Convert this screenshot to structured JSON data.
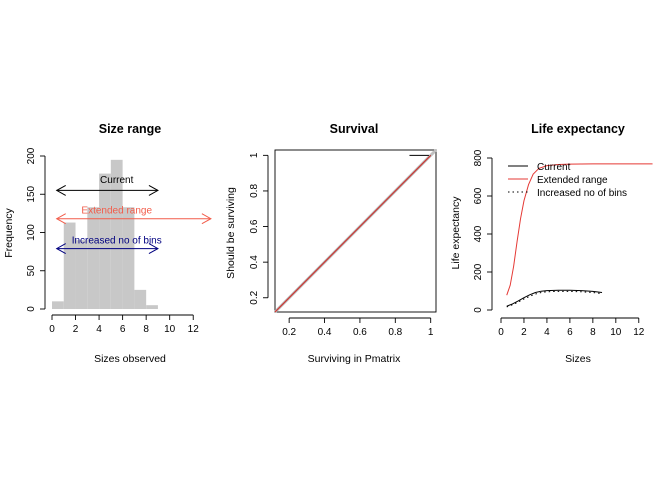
{
  "chart_data": [
    {
      "type": "bar",
      "title": "Size range",
      "xlabel": "Sizes observed",
      "ylabel": "Frequency",
      "xlim": [
        0,
        13
      ],
      "ylim": [
        0,
        200
      ],
      "xticks": [
        0,
        2,
        4,
        6,
        8,
        10,
        12
      ],
      "yticks": [
        0,
        50,
        100,
        150,
        200
      ],
      "bins": [
        {
          "x0": 0,
          "x1": 1,
          "value": 10
        },
        {
          "x0": 1,
          "x1": 2,
          "value": 113
        },
        {
          "x0": 2,
          "x1": 3,
          "value": 90
        },
        {
          "x0": 3,
          "x1": 4,
          "value": 133
        },
        {
          "x0": 4,
          "x1": 5,
          "value": 177
        },
        {
          "x0": 5,
          "x1": 6,
          "value": 195
        },
        {
          "x0": 6,
          "x1": 7,
          "value": 133
        },
        {
          "x0": 7,
          "x1": 8,
          "value": 25
        },
        {
          "x0": 8,
          "x1": 9,
          "value": 5
        }
      ],
      "bar_color": "#c8c8c8",
      "annotations": [
        {
          "label": "Current",
          "from": 0.4,
          "to": 9,
          "y": 155,
          "label_y": 170,
          "label_x": 5.5,
          "color": "#000000"
        },
        {
          "label": "Extended range",
          "from": 0.4,
          "to": 13.5,
          "y": 118,
          "label_y": 130,
          "label_x": 5.5,
          "color": "#f25c4a"
        },
        {
          "label": "Increased no of bins",
          "from": 0.4,
          "to": 9,
          "y": 79,
          "label_y": 91,
          "label_x": 5.5,
          "color": "#000080"
        }
      ]
    },
    {
      "type": "line",
      "title": "Survival",
      "xlabel": "Surviving in Pmatrix",
      "ylabel": "Should be surviving",
      "xlim": [
        0.12,
        1.03
      ],
      "ylim": [
        0.12,
        1.03
      ],
      "xticks": [
        0.2,
        0.4,
        0.6,
        0.8,
        1.0
      ],
      "yticks": [
        0.2,
        0.4,
        0.6,
        0.8,
        1.0
      ],
      "series": [
        {
          "x": [
            0.12,
            1.03
          ],
          "y": [
            0.12,
            1.03
          ],
          "color": "#c0c0c0",
          "width": 3
        },
        {
          "x": [
            0.12,
            1.0
          ],
          "y": [
            0.12,
            1.0
          ],
          "color": "#000000",
          "width": 1
        },
        {
          "x": [
            0.12,
            1.0
          ],
          "y": [
            0.12,
            1.0
          ],
          "color": "#e53935",
          "width": 1
        },
        {
          "x": [
            0.88,
            0.99
          ],
          "y": [
            1.0,
            1.0
          ],
          "color": "#000000",
          "width": 1
        }
      ]
    },
    {
      "type": "line",
      "title": "Life expectancy",
      "xlabel": "Sizes",
      "ylabel": "Life expectancy",
      "xlim": [
        0,
        13.5
      ],
      "ylim": [
        0,
        800
      ],
      "xticks": [
        0,
        2,
        4,
        6,
        8,
        10,
        12
      ],
      "yticks": [
        0,
        200,
        400,
        600,
        800
      ],
      "legend": {
        "placement": "top-left",
        "entries": [
          {
            "label": "Current",
            "color": "#000000",
            "dash": "solid"
          },
          {
            "label": "Extended range",
            "color": "#e53935",
            "dash": "solid"
          },
          {
            "label": "Increased no of bins",
            "color": "#000000",
            "dash": "dotted"
          }
        ]
      },
      "series": [
        {
          "label": "Current",
          "color": "#000000",
          "dash": "solid",
          "x": [
            0.5,
            1,
            1.5,
            2,
            2.5,
            3,
            3.5,
            4,
            5,
            6,
            7,
            8,
            8.8
          ],
          "y": [
            20,
            32,
            48,
            65,
            80,
            92,
            99,
            102,
            104,
            104,
            102,
            98,
            92
          ]
        },
        {
          "label": "Extended range",
          "color": "#e53935",
          "dash": "solid",
          "x": [
            0.5,
            0.8,
            1.1,
            1.4,
            1.7,
            2.0,
            2.4,
            2.8,
            3.3,
            4,
            5,
            6,
            8,
            10,
            13.2
          ],
          "y": [
            78,
            130,
            230,
            360,
            480,
            575,
            660,
            715,
            745,
            760,
            766,
            768,
            769,
            769,
            769
          ]
        },
        {
          "label": "Increased no of bins",
          "color": "#000000",
          "dash": "dotted",
          "x": [
            0.5,
            1,
            1.5,
            2,
            2.5,
            3,
            3.5,
            4,
            5,
            6,
            7,
            8,
            8.8
          ],
          "y": [
            16,
            28,
            42,
            58,
            72,
            84,
            92,
            96,
            98,
            98,
            96,
            92,
            86
          ]
        }
      ]
    }
  ]
}
